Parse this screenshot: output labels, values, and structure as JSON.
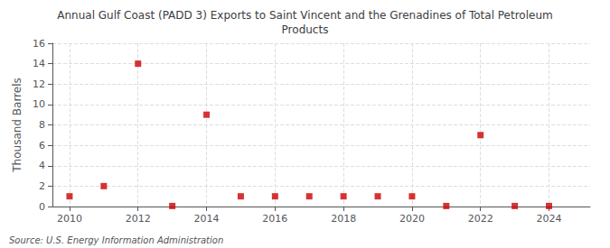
{
  "chart_data": {
    "type": "scatter",
    "title": "Annual Gulf Coast (PADD 3) Exports to Saint Vincent and the Grenadines of Total Petroleum\nProducts",
    "ylabel": "Thousand Barrels",
    "annotation": "Source: U.S. Energy Information Administration",
    "x": [
      2010,
      2011,
      2012,
      2013,
      2014,
      2015,
      2016,
      2017,
      2018,
      2019,
      2020,
      2021,
      2022,
      2023,
      2024
    ],
    "values": [
      1,
      2,
      14,
      0.05,
      9,
      1,
      1,
      1,
      1,
      1,
      1,
      0.05,
      7,
      0.05,
      0.05
    ],
    "color": "#cc0000",
    "marker": "square",
    "xlim": [
      2009.5,
      2025.2
    ],
    "xticks": [
      2010,
      2012,
      2014,
      2016,
      2018,
      2020,
      2022,
      2024
    ],
    "ylim": [
      0,
      16
    ],
    "yticks": [
      0,
      2,
      4,
      6,
      8,
      10,
      12,
      14,
      16
    ],
    "grid": true
  }
}
